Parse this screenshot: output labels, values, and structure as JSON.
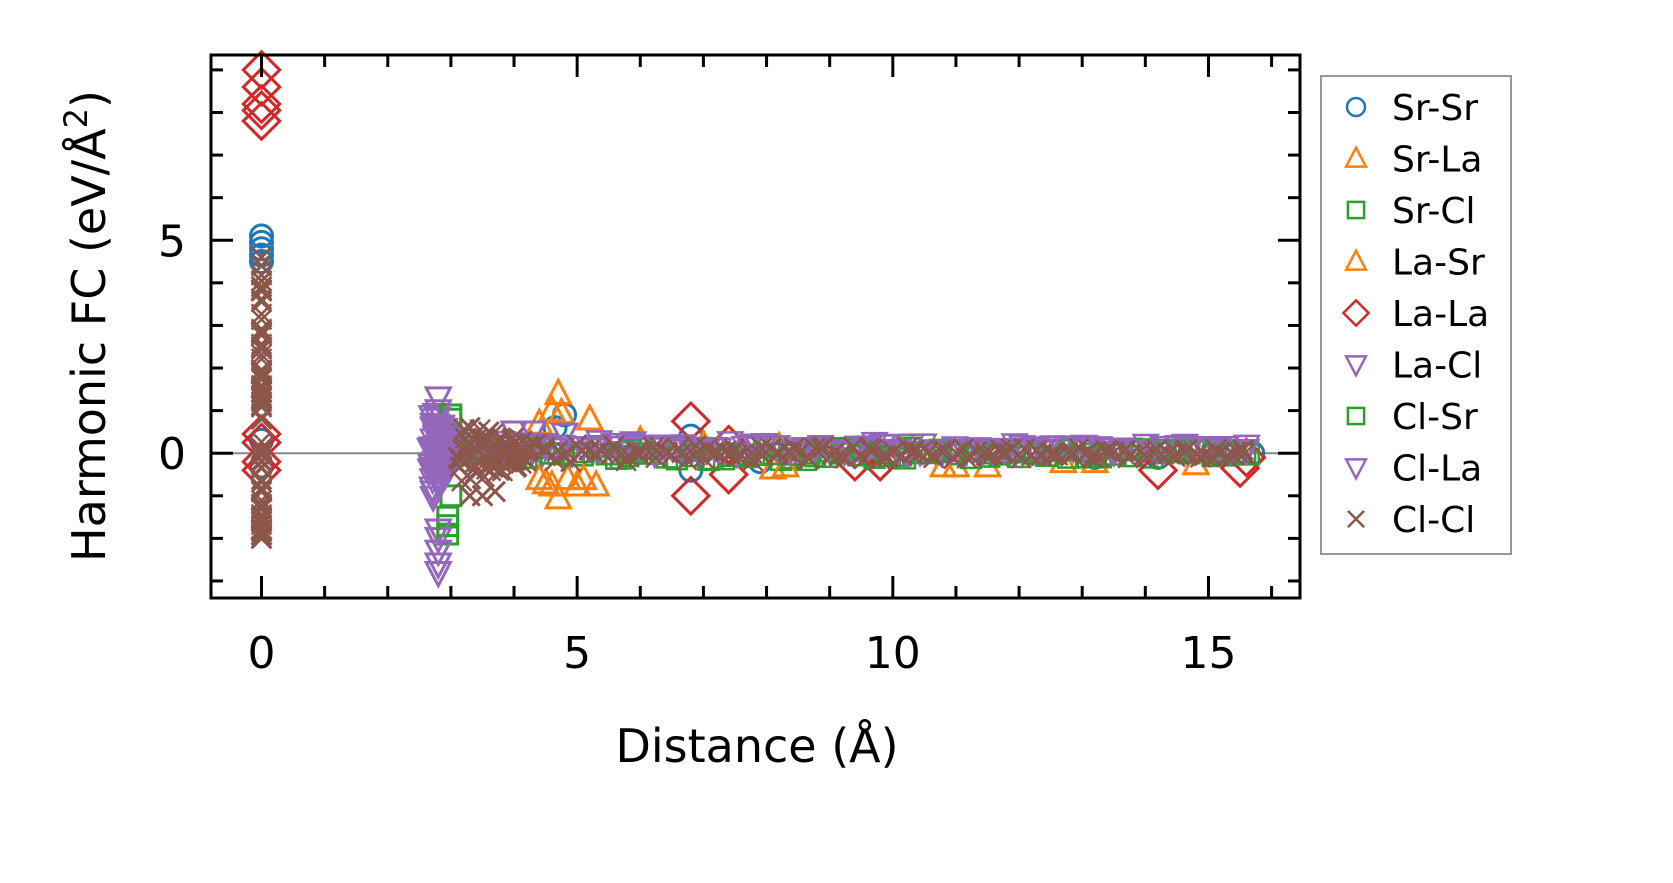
{
  "chart_data": {
    "type": "scatter",
    "title": "",
    "xlabel": "Distance (Å)",
    "ylabel_main": "Harmonic FC (eV/Å",
    "ylabel_sup": "2",
    "ylabel_close": ")",
    "xlim": [
      -0.8,
      16.45
    ],
    "ylim": [
      -3.4,
      9.35
    ],
    "xticks": [
      0,
      5,
      10,
      15
    ],
    "xtick_labels": [
      "0",
      "5",
      "10",
      "15"
    ],
    "yticks": [
      0,
      5
    ],
    "ytick_labels": [
      "0",
      "5"
    ],
    "minor_tick_step": 1,
    "zero_line": true,
    "legend_position": "right-outside",
    "series": [
      {
        "name": "Sr-Sr",
        "marker": "circle",
        "color": "#1f77b4",
        "points": [
          [
            0,
            5.1
          ],
          [
            0,
            4.95
          ],
          [
            0,
            4.8
          ],
          [
            0,
            4.65
          ],
          [
            0,
            4.5
          ],
          [
            0,
            0.3
          ],
          [
            0,
            -0.3
          ],
          [
            4.8,
            0.9
          ],
          [
            4.65,
            0.6
          ],
          [
            6.8,
            0.4
          ],
          [
            6.8,
            -0.4
          ],
          [
            7.9,
            -0.2
          ],
          [
            9.5,
            0.1
          ],
          [
            13.2,
            -0.1
          ],
          [
            14.2,
            -0.1
          ],
          [
            15.7,
            0.0
          ],
          [
            12.0,
            0.05
          ]
        ],
        "bands": []
      },
      {
        "name": "Sr-La",
        "marker": "triangle-up",
        "color": "#ff7f0e",
        "points": [
          [
            4.7,
            1.4
          ],
          [
            4.6,
            1.0
          ],
          [
            4.4,
            0.7
          ],
          [
            5.2,
            0.8
          ],
          [
            4.7,
            -1.05
          ],
          [
            4.6,
            -0.75
          ],
          [
            5.0,
            -0.75
          ],
          [
            5.3,
            -0.75
          ],
          [
            4.4,
            -0.6
          ],
          [
            4.85,
            -0.6
          ],
          [
            8.1,
            -0.35
          ],
          [
            8.2,
            0.15
          ],
          [
            10.8,
            -0.3
          ],
          [
            11.5,
            -0.3
          ],
          [
            12.7,
            -0.2
          ],
          [
            13.2,
            -0.2
          ],
          [
            14.8,
            -0.25
          ],
          [
            6.0,
            0.3
          ],
          [
            7.0,
            0.2
          ]
        ],
        "bands": []
      },
      {
        "name": "Sr-Cl",
        "marker": "square",
        "color": "#2ca02c",
        "points": [
          [
            2.95,
            -1.9
          ],
          [
            2.95,
            -1.5
          ],
          [
            3.0,
            -1.0
          ],
          [
            3.0,
            0.8
          ]
        ],
        "bands": [
          {
            "x": [
              2.9,
              15.6
            ],
            "spread": 0.22,
            "n": 70
          }
        ]
      },
      {
        "name": "La-Sr",
        "marker": "triangle-up",
        "color": "#ff7f0e",
        "points": [
          [
            4.75,
            0.95
          ],
          [
            4.5,
            -0.7
          ],
          [
            5.1,
            -0.6
          ],
          [
            8.3,
            -0.3
          ],
          [
            11.0,
            -0.3
          ]
        ],
        "bands": []
      },
      {
        "name": "La-La",
        "marker": "diamond",
        "color": "#d62728",
        "points": [
          [
            0,
            9.0
          ],
          [
            0,
            8.6
          ],
          [
            0,
            8.2
          ],
          [
            0,
            8.05
          ],
          [
            0,
            7.8
          ],
          [
            0,
            0.45
          ],
          [
            0,
            0.25
          ],
          [
            0,
            -0.2
          ],
          [
            0,
            -0.4
          ],
          [
            6.8,
            0.75
          ],
          [
            6.8,
            -1.0
          ],
          [
            7.4,
            -0.5
          ],
          [
            7.4,
            0.2
          ],
          [
            9.4,
            -0.2
          ],
          [
            9.8,
            -0.2
          ],
          [
            14.2,
            -0.4
          ],
          [
            15.5,
            -0.35
          ],
          [
            15.6,
            -0.1
          ]
        ],
        "bands": []
      },
      {
        "name": "La-Cl",
        "marker": "triangle-down",
        "color": "#9467bd",
        "points": [
          [
            2.8,
            1.3
          ],
          [
            2.8,
            -2.0
          ],
          [
            2.8,
            -2.3
          ],
          [
            2.8,
            -2.6
          ],
          [
            2.8,
            -2.8
          ],
          [
            4.0,
            0.5
          ],
          [
            4.3,
            0.5
          ],
          [
            4.8,
            0.45
          ]
        ],
        "bands": [
          {
            "x": [
              2.7,
              2.95
            ],
            "spread": 1.1,
            "n": 60
          },
          {
            "x": [
              3.0,
              15.6
            ],
            "spread": 0.18,
            "n": 80,
            "offset": 0.12
          }
        ]
      },
      {
        "name": "Cl-Sr",
        "marker": "square",
        "color": "#2ca02c",
        "points": [
          [
            2.95,
            -1.7
          ],
          [
            3.0,
            0.9
          ]
        ],
        "bands": [
          {
            "x": [
              3.0,
              15.6
            ],
            "spread": 0.2,
            "n": 50
          }
        ]
      },
      {
        "name": "Cl-La",
        "marker": "triangle-down",
        "color": "#9467bd",
        "points": [
          [
            2.8,
            1.0
          ],
          [
            2.8,
            -1.8
          ]
        ],
        "bands": [
          {
            "x": [
              2.7,
              2.95
            ],
            "spread": 1.0,
            "n": 40
          },
          {
            "x": [
              3.0,
              15.6
            ],
            "spread": 0.15,
            "n": 60,
            "offset": 0.1
          }
        ]
      },
      {
        "name": "Cl-Cl",
        "marker": "x",
        "color": "#8c564b",
        "points": [
          [
            0,
            -2.0
          ],
          [
            0,
            -1.8
          ],
          [
            0,
            4.6
          ],
          [
            0,
            4.4
          ],
          [
            3.3,
            -1.0
          ],
          [
            3.5,
            -1.0
          ],
          [
            3.7,
            -0.9
          ],
          [
            3.3,
            0.6
          ],
          [
            3.6,
            0.5
          ]
        ],
        "bands": [
          {
            "x": [
              0,
              0
            ],
            "spread": 3.3,
            "n": 90,
            "offset": 1.3
          },
          {
            "x": [
              3.1,
              4.2
            ],
            "spread": 0.75,
            "n": 60
          },
          {
            "x": [
              4.2,
              15.6
            ],
            "spread": 0.22,
            "n": 140
          }
        ]
      }
    ]
  }
}
